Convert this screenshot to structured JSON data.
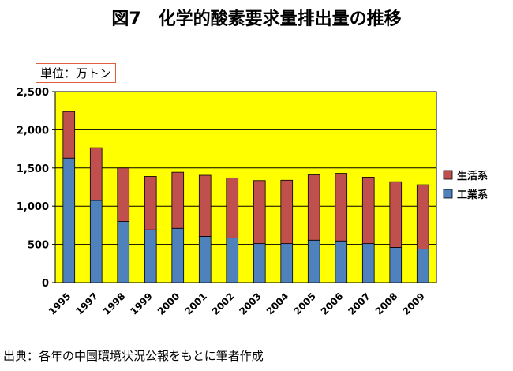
{
  "title": "図7　化学的酸素要求量排出量の推移",
  "unit_label": "単位：万トン",
  "source": "出典：各年の中国環境状況公報をもとに筆者作成",
  "colors": {
    "plot_background": "#ffff00",
    "household": "#c0504d",
    "industrial": "#4f81bd"
  },
  "chart_data": {
    "type": "bar",
    "stacked": true,
    "categories": [
      "1995",
      "1997",
      "1998",
      "1999",
      "2000",
      "2001",
      "2002",
      "2003",
      "2004",
      "2005",
      "2006",
      "2007",
      "2008",
      "2009"
    ],
    "series": [
      {
        "name": "工業系",
        "color": "#4f81bd",
        "values": [
          1630,
          1075,
          800,
          690,
          710,
          605,
          585,
          510,
          510,
          555,
          545,
          510,
          460,
          440
        ]
      },
      {
        "name": "生活系",
        "color": "#c0504d",
        "values": [
          610,
          690,
          700,
          700,
          735,
          800,
          785,
          825,
          830,
          855,
          885,
          870,
          860,
          840
        ]
      }
    ],
    "legend_order": [
      "生活系",
      "工業系"
    ],
    "legend_position": "right",
    "ylim": [
      0,
      2500
    ],
    "yticks": [
      "0",
      "500",
      "1,000",
      "1,500",
      "2,000",
      "2,500"
    ],
    "ytick_values": [
      0,
      500,
      1000,
      1500,
      2000,
      2500
    ],
    "grid": true
  }
}
